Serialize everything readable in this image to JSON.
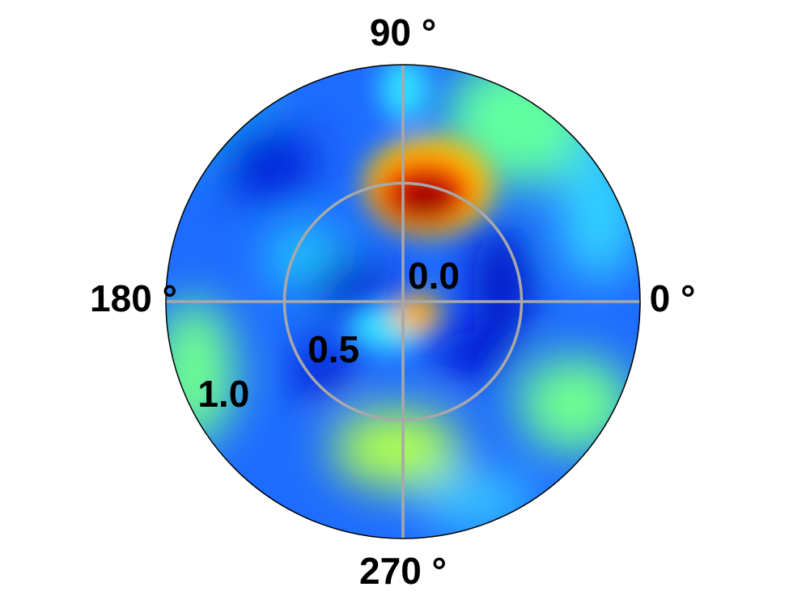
{
  "chart_data": {
    "type": "polar",
    "thetaticks": [
      {
        "value": 0,
        "label": "0 °"
      },
      {
        "value": 90,
        "label": "90 °"
      },
      {
        "value": 180,
        "label": "180 °"
      },
      {
        "value": 270,
        "label": "270 °"
      }
    ],
    "rlim": [
      0,
      1
    ],
    "rticks": [
      {
        "value": 0,
        "label": "0.0"
      },
      0.5,
      {
        "value": 1,
        "label": "1.0"
      }
    ],
    "grid": true,
    "grid_color": "#a8a8a8",
    "colormap": "jet"
  }
}
